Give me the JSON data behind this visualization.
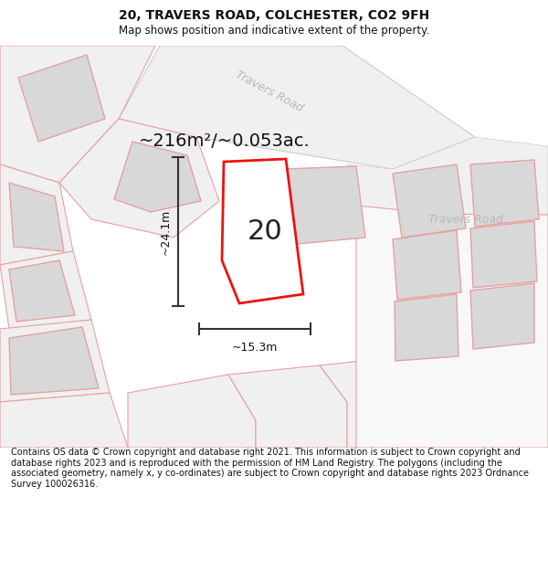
{
  "title": "20, TRAVERS ROAD, COLCHESTER, CO2 9FH",
  "subtitle": "Map shows position and indicative extent of the property.",
  "footer": "Contains OS data © Crown copyright and database right 2021. This information is subject to Crown copyright and database rights 2023 and is reproduced with the permission of HM Land Registry. The polygons (including the associated geometry, namely x, y co-ordinates) are subject to Crown copyright and database rights 2023 Ordnance Survey 100026316.",
  "area_label": "~216m²/~0.053ac.",
  "width_label": "~15.3m",
  "height_label": "~24.1m",
  "number_label": "20",
  "road_label_diag": "Travers Road",
  "road_label_horiz": "Travers Road",
  "bg_color": "#ffffff",
  "map_bg": "#ffffff",
  "highlight_color": "#ee1111",
  "neighbor_edge": "#e8a0a0",
  "neighbor_fill": "#e8e8e8",
  "building_fill": "#d8d8d8",
  "road_fill": "#f0f0f0",
  "title_fontsize": 10,
  "subtitle_fontsize": 8.5,
  "footer_fontsize": 7.0,
  "area_fontsize": 14,
  "number_fontsize": 22,
  "dim_fontsize": 9,
  "road_label_fontsize": 9
}
